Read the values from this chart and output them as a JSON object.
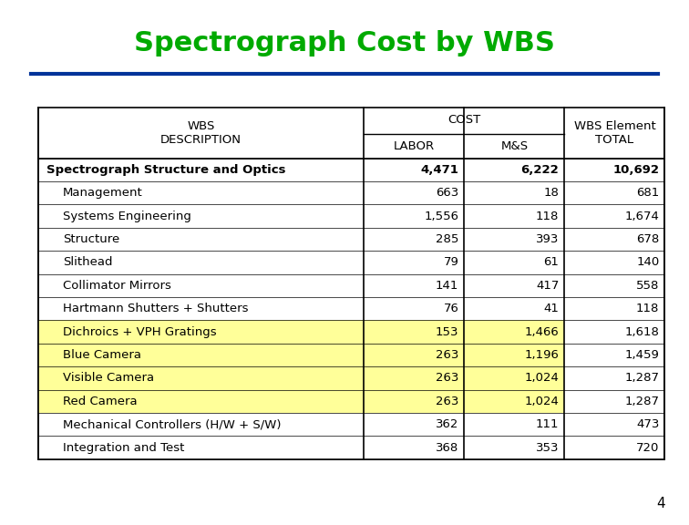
{
  "title": "Spectrograph Cost by WBS",
  "title_color": "#00AA00",
  "title_fontsize": 22,
  "divider_color": "#003399",
  "background_color": "#FFFFFF",
  "page_number": "4",
  "rows": [
    {
      "label": "Spectrograph Structure and Optics",
      "indent": 0,
      "bold": true,
      "labor": "4,471",
      "ms": "6,222",
      "total": "10,692",
      "highlight": false
    },
    {
      "label": "Management",
      "indent": 1,
      "bold": false,
      "labor": "663",
      "ms": "18",
      "total": "681",
      "highlight": false
    },
    {
      "label": "Systems Engineering",
      "indent": 1,
      "bold": false,
      "labor": "1,556",
      "ms": "118",
      "total": "1,674",
      "highlight": false
    },
    {
      "label": "Structure",
      "indent": 1,
      "bold": false,
      "labor": "285",
      "ms": "393",
      "total": "678",
      "highlight": false
    },
    {
      "label": "Slithead",
      "indent": 1,
      "bold": false,
      "labor": "79",
      "ms": "61",
      "total": "140",
      "highlight": false
    },
    {
      "label": "Collimator Mirrors",
      "indent": 1,
      "bold": false,
      "labor": "141",
      "ms": "417",
      "total": "558",
      "highlight": false
    },
    {
      "label": "Hartmann Shutters + Shutters",
      "indent": 1,
      "bold": false,
      "labor": "76",
      "ms": "41",
      "total": "118",
      "highlight": false
    },
    {
      "label": "Dichroics + VPH Gratings",
      "indent": 1,
      "bold": false,
      "labor": "153",
      "ms": "1,466",
      "total": "1,618",
      "highlight": true
    },
    {
      "label": "Blue Camera",
      "indent": 1,
      "bold": false,
      "labor": "263",
      "ms": "1,196",
      "total": "1,459",
      "highlight": true
    },
    {
      "label": "Visible Camera",
      "indent": 1,
      "bold": false,
      "labor": "263",
      "ms": "1,024",
      "total": "1,287",
      "highlight": true
    },
    {
      "label": "Red Camera",
      "indent": 1,
      "bold": false,
      "labor": "263",
      "ms": "1,024",
      "total": "1,287",
      "highlight": true
    },
    {
      "label": "Mechanical Controllers (H/W + S/W)",
      "indent": 1,
      "bold": false,
      "labor": "362",
      "ms": "111",
      "total": "473",
      "highlight": false
    },
    {
      "label": "Integration and Test",
      "indent": 1,
      "bold": false,
      "labor": "368",
      "ms": "353",
      "total": "720",
      "highlight": false
    }
  ],
  "highlight_color": "#FFFF99",
  "table_border_color": "#000000",
  "table_font_size": 9.5,
  "header_font_size": 9.5
}
